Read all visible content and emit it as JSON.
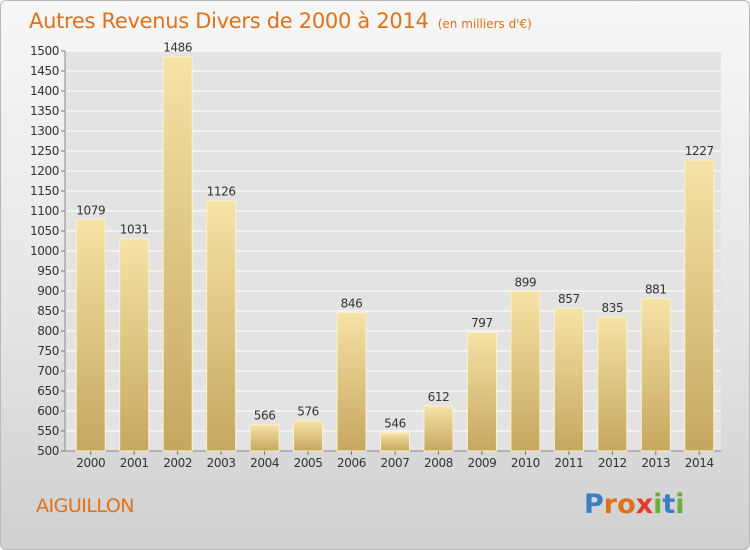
{
  "title": "Autres Revenus Divers de 2000 à 2014",
  "subtitle": "(en milliers d'€)",
  "commune": "AIGUILLON",
  "logo": {
    "text": "Proxiti",
    "letters": [
      {
        "char": "P",
        "color": "#3a7fc4"
      },
      {
        "char": "r",
        "color": "#e0711a"
      },
      {
        "char": "o",
        "color": "#e0711a"
      },
      {
        "char": "x",
        "color": "#e23a2e"
      },
      {
        "char": "i",
        "color": "#6cae3c"
      },
      {
        "char": "t",
        "color": "#3a7fc4"
      },
      {
        "char": "i",
        "color": "#6cae3c"
      }
    ]
  },
  "colors": {
    "title": "#e0711a",
    "bar_top": "#f6e3a6",
    "bar_bottom": "#c6a75f",
    "grid": "#ffffff",
    "text": "#333333"
  },
  "chart_data": {
    "type": "bar",
    "categories": [
      "2000",
      "2001",
      "2002",
      "2003",
      "2004",
      "2005",
      "2006",
      "2007",
      "2008",
      "2009",
      "2010",
      "2011",
      "2012",
      "2013",
      "2014"
    ],
    "values": [
      1079,
      1031,
      1486,
      1126,
      566,
      576,
      846,
      546,
      612,
      797,
      899,
      857,
      835,
      881,
      1227
    ],
    "ylim": [
      500,
      1500
    ],
    "ytick_step": 50,
    "grid": true,
    "data_labels": true
  }
}
